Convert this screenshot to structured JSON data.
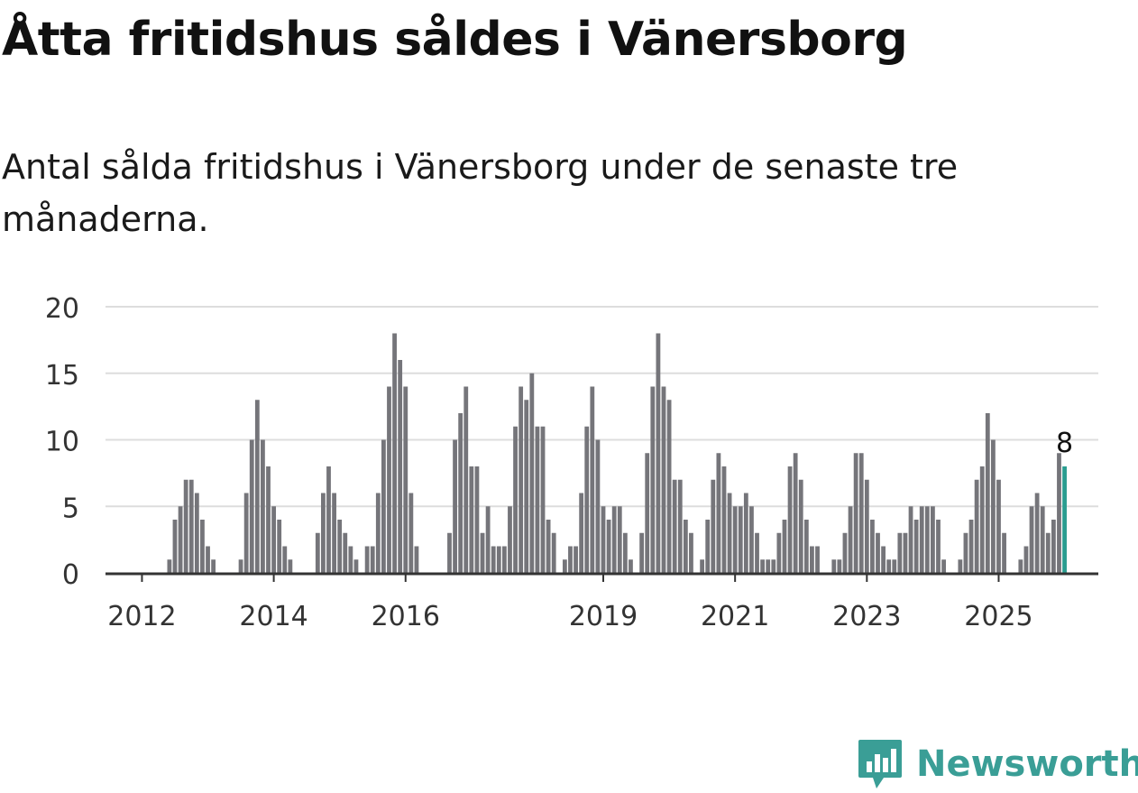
{
  "title": "Åtta fritidshus såldes i Vänersborg",
  "subtitle": "Antal sålda fritidshus i Vänersborg under de senaste tre månaderna.",
  "brand": {
    "name": "Newsworthy",
    "logo_icon": "newsworthy-logo-icon"
  },
  "colors": {
    "bar": "#75757a",
    "highlight": "#2a9d90",
    "grid": "#dddddd",
    "axis": "#333333",
    "brand": "#3a9e96"
  },
  "chart_data": {
    "type": "bar",
    "title": "Åtta fritidshus såldes i Vänersborg",
    "xlabel": "",
    "ylabel": "",
    "ylim": [
      0,
      20
    ],
    "yticks": [
      0,
      5,
      10,
      15,
      20
    ],
    "grid": true,
    "highlight_label": "8",
    "x_tick_labels": [
      {
        "label": "2012",
        "index": 6
      },
      {
        "label": "2014",
        "index": 30
      },
      {
        "label": "2016",
        "index": 54
      },
      {
        "label": "2019",
        "index": 90
      },
      {
        "label": "2021",
        "index": 114
      },
      {
        "label": "2023",
        "index": 138
      },
      {
        "label": "2025",
        "index": 162
      }
    ],
    "values": [
      0,
      0,
      0,
      0,
      0,
      0,
      0,
      0,
      0,
      0,
      0,
      1,
      4,
      5,
      7,
      7,
      6,
      4,
      2,
      1,
      0,
      0,
      0,
      0,
      1,
      6,
      10,
      13,
      10,
      8,
      5,
      4,
      2,
      1,
      0,
      0,
      0,
      0,
      3,
      6,
      8,
      6,
      4,
      3,
      2,
      1,
      0,
      2,
      2,
      6,
      10,
      14,
      18,
      16,
      14,
      6,
      2,
      0,
      0,
      0,
      0,
      0,
      3,
      10,
      12,
      14,
      8,
      8,
      3,
      5,
      2,
      2,
      2,
      5,
      11,
      14,
      13,
      15,
      11,
      11,
      4,
      3,
      0,
      1,
      2,
      2,
      6,
      11,
      14,
      10,
      5,
      4,
      5,
      5,
      3,
      1,
      0,
      3,
      9,
      14,
      18,
      14,
      13,
      7,
      7,
      4,
      3,
      0,
      1,
      4,
      7,
      9,
      8,
      6,
      5,
      5,
      6,
      5,
      3,
      1,
      1,
      1,
      3,
      4,
      8,
      9,
      7,
      4,
      2,
      2,
      0,
      0,
      1,
      1,
      3,
      5,
      9,
      9,
      7,
      4,
      3,
      2,
      1,
      1,
      3,
      3,
      5,
      4,
      5,
      5,
      5,
      4,
      1,
      0,
      0,
      1,
      3,
      4,
      7,
      8,
      12,
      10,
      7,
      3,
      0,
      0,
      1,
      2,
      5,
      6,
      5,
      3,
      4,
      9,
      8
    ]
  }
}
